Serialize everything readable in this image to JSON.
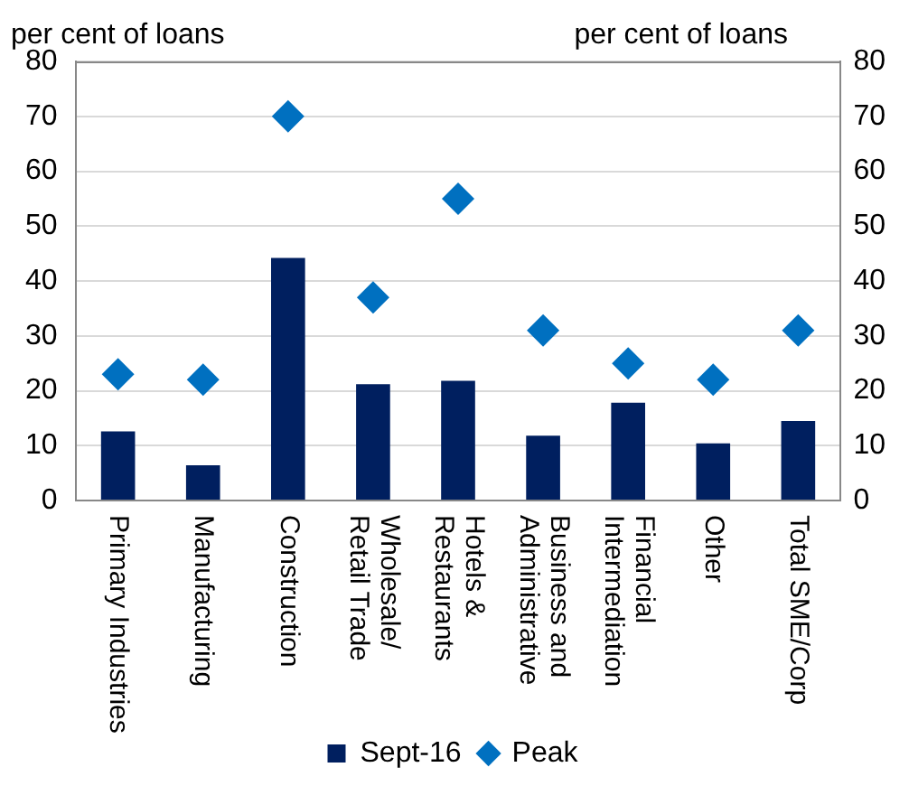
{
  "chart_data": {
    "type": "bar",
    "ylabel": "per cent of loans",
    "y2label": "per cent of loans",
    "categories": [
      "Primary Industries",
      "Manufacturing",
      "Construction",
      "Wholesale/\nRetail Trade",
      "Hotels &\nRestaurants",
      "Business and\nAdministrative",
      "Financial\nIntermediation",
      "Other",
      "Total SME/Corp"
    ],
    "series": [
      {
        "name": "Sept-16",
        "color": "#001f5f",
        "values": [
          12.6,
          6.4,
          44.2,
          21.2,
          21.8,
          11.8,
          17.8,
          10.4,
          14.5
        ]
      },
      {
        "name": "Peak",
        "type": "scatter",
        "marker": "diamond",
        "color": "#0070c0",
        "x": [
          "Primary Industries",
          "Manufacturing",
          "Construction",
          "Wholesale/\nRetail Trade",
          "Hotels &\nRestaurants",
          "Business and\nAdministrative",
          "Financial\nIntermediation",
          "Other",
          "Total SME/Corp"
        ],
        "values": [
          23,
          22,
          70,
          37,
          55,
          31,
          25,
          22,
          31
        ]
      }
    ],
    "ylim": [
      0,
      80
    ],
    "yticks": [
      0,
      10,
      20,
      30,
      40,
      50,
      60,
      70,
      80
    ],
    "y2lim": [
      0,
      80
    ],
    "y2ticks": [
      0,
      10,
      20,
      30,
      40,
      50,
      60,
      70,
      80
    ],
    "grid": "y",
    "legend": "bottom"
  }
}
